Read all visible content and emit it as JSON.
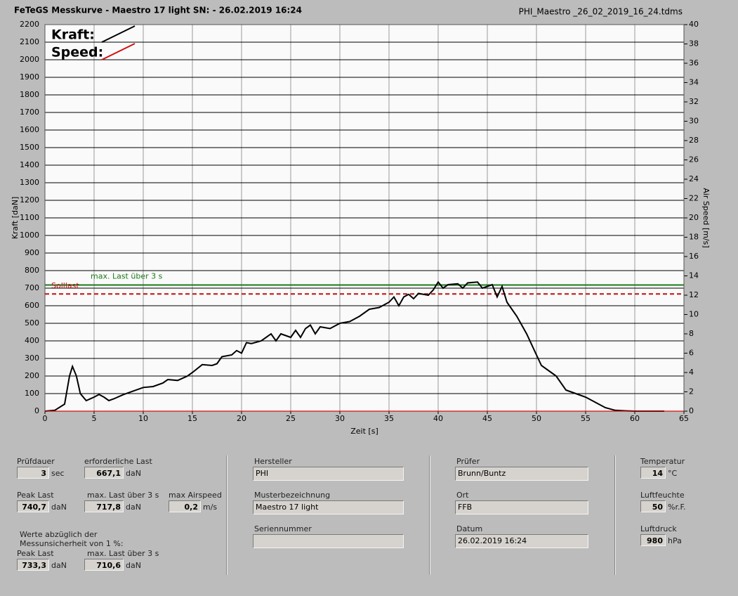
{
  "header": {
    "title": "FeTeGS Messkurve - Maestro 17 light  SN:  - 26.02.2019 16:24",
    "file": "PHI_Maestro _26_02_2019_16_24.tdms"
  },
  "chart_data": {
    "type": "line",
    "xlabel": "Zeit [s]",
    "ylabel": "Kraft [daN]",
    "y2label": "Air Speed [m/s]",
    "xlim": [
      0,
      65
    ],
    "xticks": [
      0,
      5,
      10,
      15,
      20,
      25,
      30,
      35,
      40,
      45,
      50,
      55,
      60,
      65
    ],
    "ylim": [
      0,
      2200
    ],
    "yticks": [
      0,
      100,
      200,
      300,
      400,
      500,
      600,
      700,
      800,
      900,
      1000,
      1100,
      1200,
      1300,
      1400,
      1500,
      1600,
      1700,
      1800,
      1900,
      2000,
      2100,
      2200
    ],
    "y2lim": [
      0,
      40
    ],
    "y2ticks": [
      0,
      2,
      4,
      6,
      8,
      10,
      12,
      14,
      16,
      18,
      20,
      22,
      24,
      26,
      28,
      30,
      32,
      34,
      36,
      38,
      40
    ],
    "grid": true,
    "series": [
      {
        "name": "Kraft:",
        "color": "#000000",
        "x": [
          0,
          1,
          2,
          2.5,
          2.8,
          3.2,
          3.6,
          4.2,
          5,
          5.5,
          6,
          6.5,
          7,
          8,
          9,
          10,
          11,
          12,
          12.5,
          13.5,
          14.5,
          15,
          16,
          17,
          17.5,
          18,
          19,
          19.5,
          20,
          20.5,
          21,
          22,
          23,
          23.5,
          24,
          25,
          25.5,
          26,
          26.5,
          27,
          27.5,
          28,
          29,
          30,
          31,
          32,
          33,
          34,
          35,
          35.5,
          36,
          36.5,
          37,
          37.5,
          38,
          39,
          39.5,
          40,
          40.5,
          41,
          42,
          42.5,
          43,
          44,
          44.5,
          45,
          45.5,
          46,
          46.5,
          47,
          47.5,
          48,
          49,
          50,
          50.5,
          51,
          52,
          53,
          54,
          55,
          56,
          57,
          58,
          59,
          60,
          63
        ],
        "values": [
          0,
          5,
          40,
          200,
          255,
          200,
          100,
          60,
          80,
          95,
          80,
          60,
          70,
          95,
          115,
          135,
          140,
          160,
          180,
          175,
          200,
          220,
          265,
          260,
          270,
          310,
          320,
          345,
          330,
          390,
          385,
          400,
          440,
          400,
          440,
          420,
          460,
          420,
          470,
          490,
          440,
          480,
          470,
          500,
          510,
          540,
          580,
          590,
          620,
          650,
          600,
          650,
          665,
          640,
          670,
          660,
          690,
          735,
          700,
          720,
          725,
          700,
          730,
          735,
          700,
          710,
          720,
          650,
          710,
          620,
          580,
          540,
          440,
          320,
          260,
          240,
          200,
          120,
          100,
          80,
          50,
          20,
          5,
          2,
          0,
          0
        ]
      },
      {
        "name": "Speed:",
        "color": "#d01010",
        "axis": "y2",
        "x": [
          0,
          65
        ],
        "values": [
          0,
          0
        ]
      }
    ],
    "reference_lines": [
      {
        "value": 717.8,
        "label": "max. Last über  3 s",
        "color": "#1a7a1a"
      },
      {
        "value": 667.1,
        "label": "Solllast",
        "color": "#c01010",
        "dashed": true
      }
    ]
  },
  "panel": {
    "fields": [
      {
        "label": "Prüfdauer",
        "value": "3",
        "unit": "sec"
      },
      {
        "label": "erforderliche Last",
        "value": "667,1",
        "unit": "daN"
      },
      {
        "label": "Peak Last",
        "value": "740,7",
        "unit": "daN"
      },
      {
        "label": "max. Last über  3 s",
        "value": "717,8",
        "unit": "daN"
      },
      {
        "label": "max Airspeed",
        "value": "0,2",
        "unit": "m/s"
      },
      {
        "label": "Peak Last",
        "value": "733,3",
        "unit": "daN"
      },
      {
        "label": "max. Last über  3 s",
        "value": "710,6",
        "unit": "daN"
      },
      {
        "label": "Hersteller",
        "value": "PHI"
      },
      {
        "label": "Musterbezeichnung",
        "value": "Maestro 17 light"
      },
      {
        "label": "Seriennummer"
      },
      {
        "label": "Prüfer",
        "value": "Brunn/Buntz"
      },
      {
        "label": "Ort",
        "value": "FFB"
      },
      {
        "label": "Datum",
        "value": "26.02.2019 16:24"
      },
      {
        "label": "Temperatur",
        "value": "14",
        "unit": "°C"
      },
      {
        "label": "Luftfeuchte",
        "value": "50",
        "unit": "%r.F."
      },
      {
        "label": "Luftdruck",
        "value": "980",
        "unit": "hPa"
      }
    ],
    "note": [
      "Werte abzüglich der",
      "Messunsicherheit von 1  %:"
    ]
  }
}
